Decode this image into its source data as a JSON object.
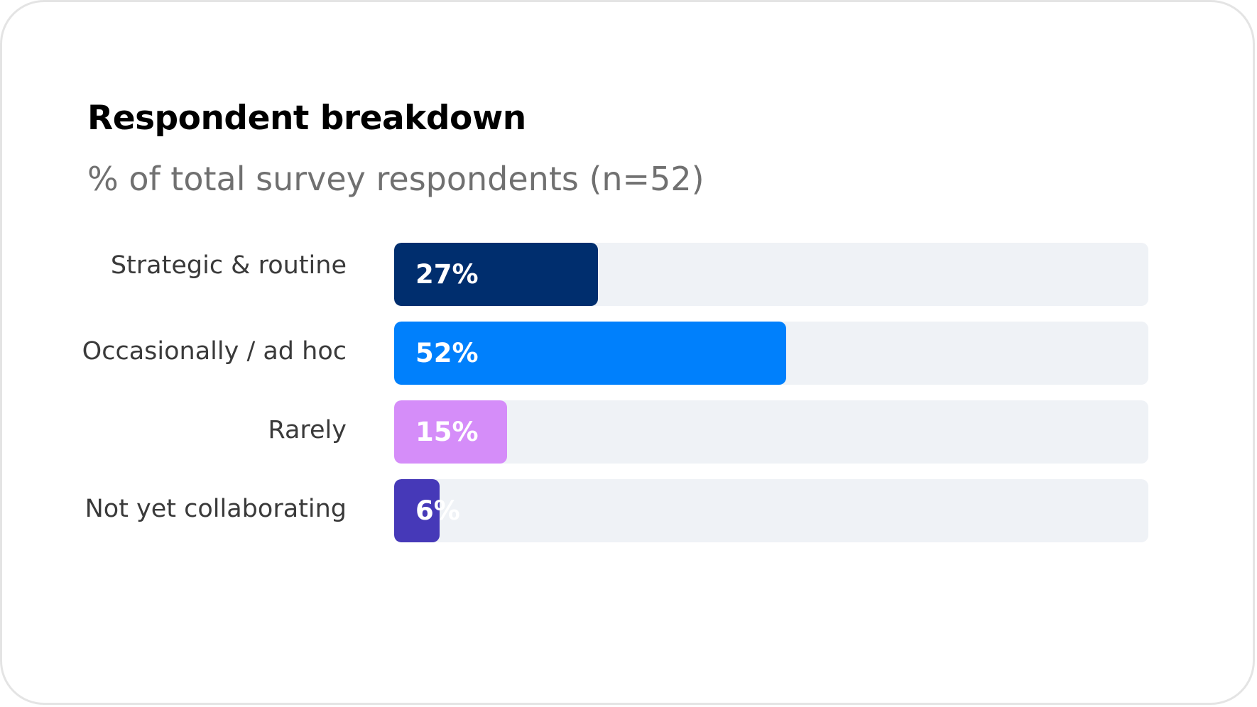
{
  "chart_data": {
    "type": "bar",
    "orientation": "horizontal",
    "title": "Respondent breakdown",
    "subtitle": "% of total survey respondents (n=52)",
    "xlim": [
      0,
      100
    ],
    "grid": false,
    "categories": [
      "Strategic & routine",
      "Occasionally / ad hoc",
      "Rarely",
      "Not yet collaborating"
    ],
    "values": [
      27,
      52,
      15,
      6
    ],
    "value_labels": [
      "27%",
      "52%",
      "15%",
      "6%"
    ],
    "colors": [
      "#002e6e",
      "#0080fc",
      "#d58df9",
      "#4639b8"
    ],
    "track_color": "#eff2f6"
  }
}
